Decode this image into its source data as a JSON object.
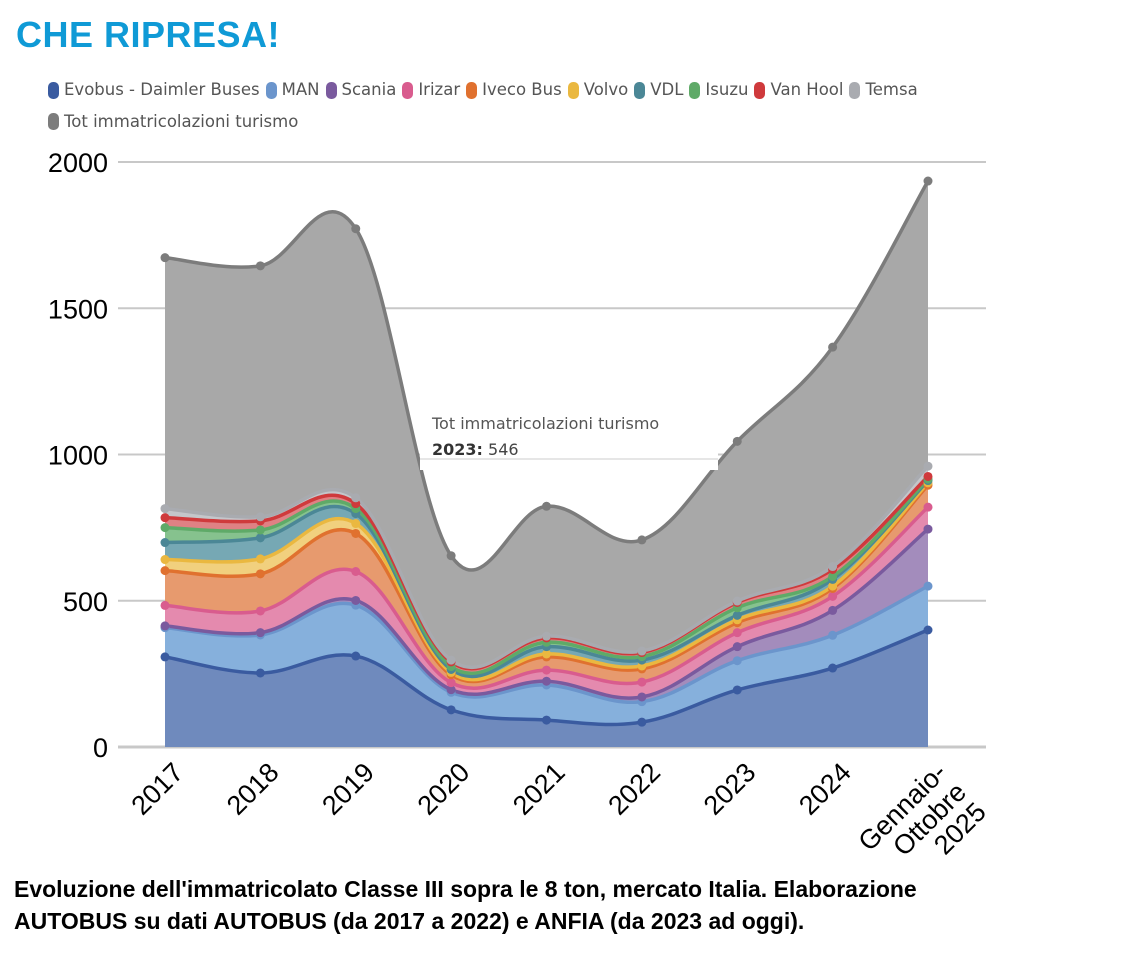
{
  "headline": "CHE RIPRESA!",
  "caption_line1": "Evoluzione dell'immatricolato Classe III sopra le 8 ton, mercato Italia. Elaborazione",
  "caption_line2": "AUTOBUS su dati AUTOBUS (da 2017 a 2022) e ANFIA (da 2023 ad oggi).",
  "tooltip": {
    "series": "Tot immatricolazioni turismo",
    "category": "2023:",
    "value": "546"
  },
  "chart_data": {
    "type": "area",
    "stacked": true,
    "smooth": true,
    "title": "",
    "xlabel": "",
    "ylabel": "",
    "ylim": [
      0,
      2000
    ],
    "yticks": [
      0,
      500,
      1000,
      1500,
      2000
    ],
    "grid": true,
    "legend_position": "top-left",
    "categories": [
      "2017",
      "2018",
      "2019",
      "2020",
      "2021",
      "2022",
      "2023",
      "2024",
      "Gennaio-Ottobre 2025"
    ],
    "category_label_lines": [
      [
        "2017"
      ],
      [
        "2018"
      ],
      [
        "2019"
      ],
      [
        "2020"
      ],
      [
        "2021"
      ],
      [
        "2022"
      ],
      [
        "2023"
      ],
      [
        "2024"
      ],
      [
        "Gennaio-",
        "Ottobre",
        "2025"
      ]
    ],
    "series": [
      {
        "name": "Evobus - Daimler Buses",
        "color": "#3a5ba0",
        "fill": "#6f8abd",
        "values": [
          308,
          253,
          311,
          127,
          92,
          85,
          195,
          270,
          400
        ]
      },
      {
        "name": "MAN",
        "color": "#6b95cc",
        "fill": "#86b0dc",
        "values": [
          100,
          130,
          174,
          60,
          120,
          70,
          100,
          112,
          150
        ]
      },
      {
        "name": "Scania",
        "color": "#7a5a9e",
        "fill": "#a38cbc",
        "values": [
          6,
          8,
          16,
          9,
          13,
          16,
          48,
          85,
          195
        ]
      },
      {
        "name": "Irizar",
        "color": "#d95c8e",
        "fill": "#e48aae",
        "values": [
          70,
          74,
          99,
          24,
          38,
          51,
          48,
          48,
          75
        ]
      },
      {
        "name": "Iveco Bus",
        "color": "#e0712f",
        "fill": "#e79a6e",
        "values": [
          119,
          127,
          130,
          27,
          45,
          45,
          34,
          27,
          75
        ]
      },
      {
        "name": "Volvo",
        "color": "#eab840",
        "fill": "#f1d07e",
        "values": [
          38,
          51,
          34,
          8,
          10,
          10,
          10,
          8,
          8
        ]
      },
      {
        "name": "VDL",
        "color": "#4b8796",
        "fill": "#76a8b4",
        "values": [
          58,
          72,
          34,
          10,
          25,
          20,
          15,
          23,
          8
        ]
      },
      {
        "name": "Isuzu",
        "color": "#5faa68",
        "fill": "#86c28e",
        "values": [
          51,
          27,
          17,
          10,
          15,
          12,
          26,
          10,
          5
        ]
      },
      {
        "name": "Van Hool",
        "color": "#cf3a3c",
        "fill": "#df8184",
        "values": [
          34,
          31,
          17,
          16,
          15,
          14,
          18,
          24,
          9
        ]
      },
      {
        "name": "Temsa",
        "color": "#a9abb0",
        "fill": "#c4c6ca",
        "values": [
          31,
          14,
          20,
          6,
          6,
          5,
          5,
          10,
          35
        ]
      },
      {
        "name": "Tot immatricolazioni turismo",
        "color": "#7c7c7c",
        "fill": "#a8a8a8",
        "values": [
          858,
          858,
          920,
          357,
          444,
          380,
          546,
          750,
          975
        ]
      }
    ]
  }
}
